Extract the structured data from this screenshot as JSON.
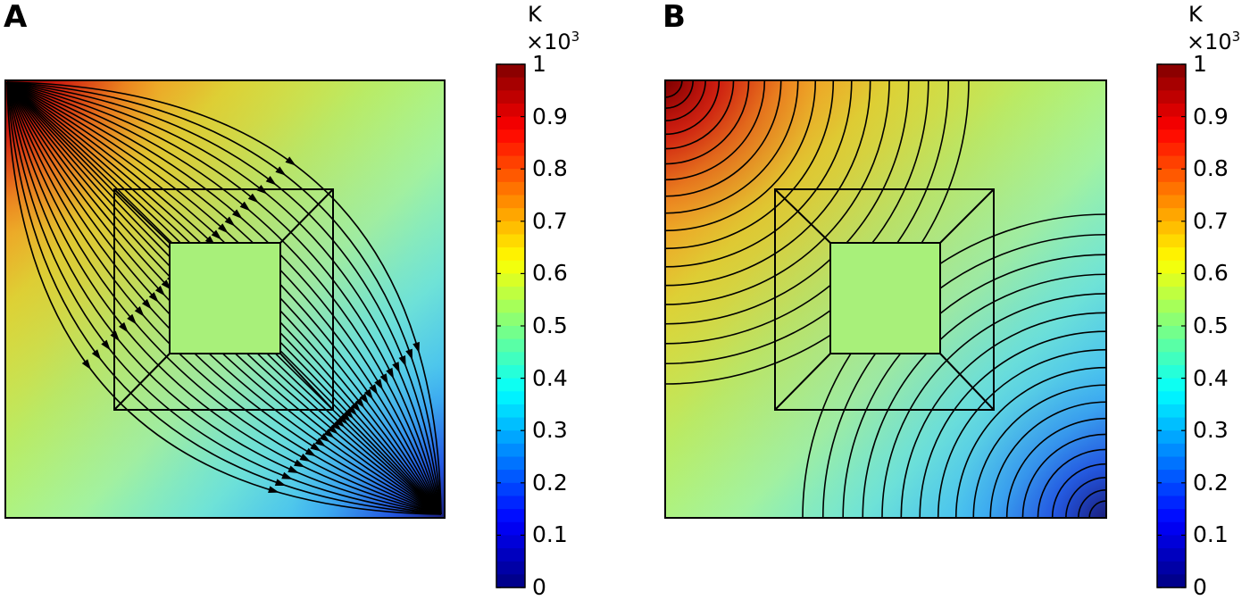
{
  "panels": [
    {
      "letter": "A",
      "kind": "streamlines"
    },
    {
      "letter": "B",
      "kind": "isotherms"
    }
  ],
  "colorbar": {
    "unit": "K",
    "multiplier_base": "×10",
    "multiplier_exp": "3",
    "ticks": [
      "1",
      "0.9",
      "0.8",
      "0.7",
      "0.6",
      "0.5",
      "0.4",
      "0.3",
      "0.2",
      "0.1",
      "0"
    ],
    "min": 0,
    "max": 1,
    "colormap": "jet"
  },
  "colors": {
    "outline": "#000000"
  }
}
